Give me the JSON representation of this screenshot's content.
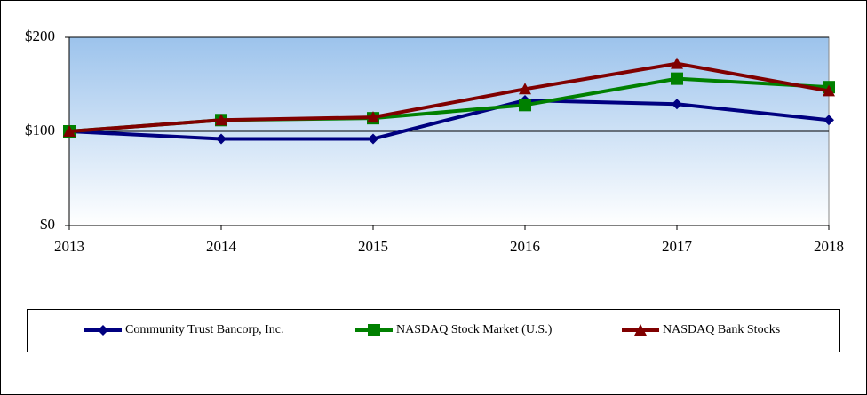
{
  "chart_data": {
    "type": "line",
    "categories": [
      "2013",
      "2014",
      "2015",
      "2016",
      "2017",
      "2018"
    ],
    "series": [
      {
        "name": "Community Trust Bancorp, Inc.",
        "color": "#000080",
        "marker": "diamond",
        "values": [
          100,
          92,
          92,
          133,
          129,
          112
        ]
      },
      {
        "name": "NASDAQ Stock Market (U.S.)",
        "color": "#008000",
        "marker": "square",
        "values": [
          100,
          112,
          114,
          128,
          156,
          147
        ]
      },
      {
        "name": "NASDAQ Bank Stocks",
        "color": "#800000",
        "marker": "triangle",
        "values": [
          100,
          112,
          115,
          145,
          172,
          143
        ]
      }
    ],
    "ylim": [
      0,
      200
    ],
    "yticks": [
      {
        "value": 0,
        "label": "$0"
      },
      {
        "value": 100,
        "label": "$100"
      },
      {
        "value": 200,
        "label": "$200"
      }
    ],
    "grid": true,
    "legend": "bottom"
  }
}
